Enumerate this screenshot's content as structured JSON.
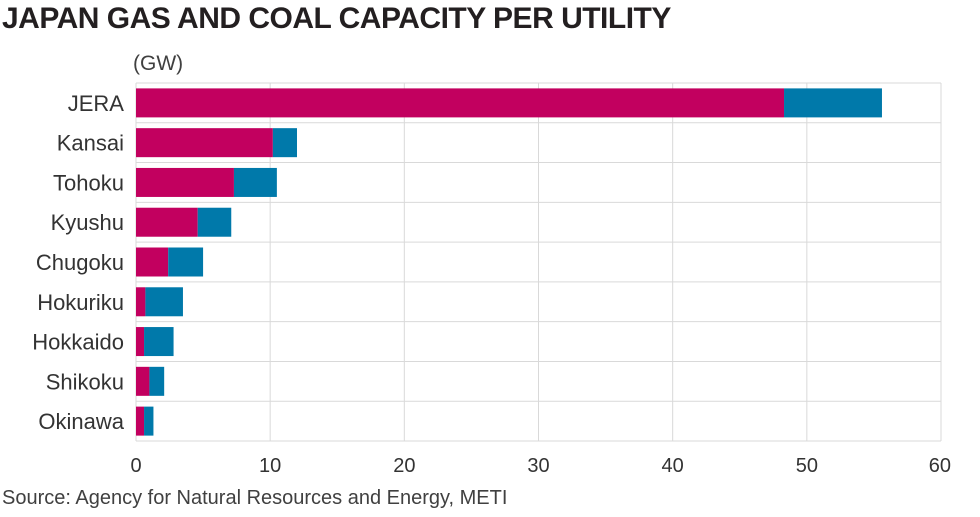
{
  "title": "JAPAN GAS AND COAL CAPACITY PER UTILITY",
  "unit": "(GW)",
  "source": "Source: Agency for Natural Resources and Energy, METI",
  "colors": {
    "gas": "#c2005f",
    "coal": "#0079aa",
    "grid": "#d9d9d9"
  },
  "chart_data": {
    "type": "bar",
    "orientation": "horizontal",
    "stacked": true,
    "categories": [
      "JERA",
      "Kansai",
      "Tohoku",
      "Kyushu",
      "Chugoku",
      "Hokuriku",
      "Hokkaido",
      "Shikoku",
      "Okinawa"
    ],
    "series": [
      {
        "values": [
          48.3,
          10.2,
          7.3,
          4.6,
          2.4,
          0.7,
          0.6,
          1.0,
          0.6
        ]
      },
      {
        "values": [
          7.3,
          1.8,
          3.2,
          2.5,
          2.6,
          2.8,
          2.2,
          1.1,
          0.7
        ]
      }
    ],
    "xlim": [
      0,
      60
    ],
    "xticks": [
      0,
      10,
      20,
      30,
      40,
      50,
      60
    ],
    "grid": true
  }
}
